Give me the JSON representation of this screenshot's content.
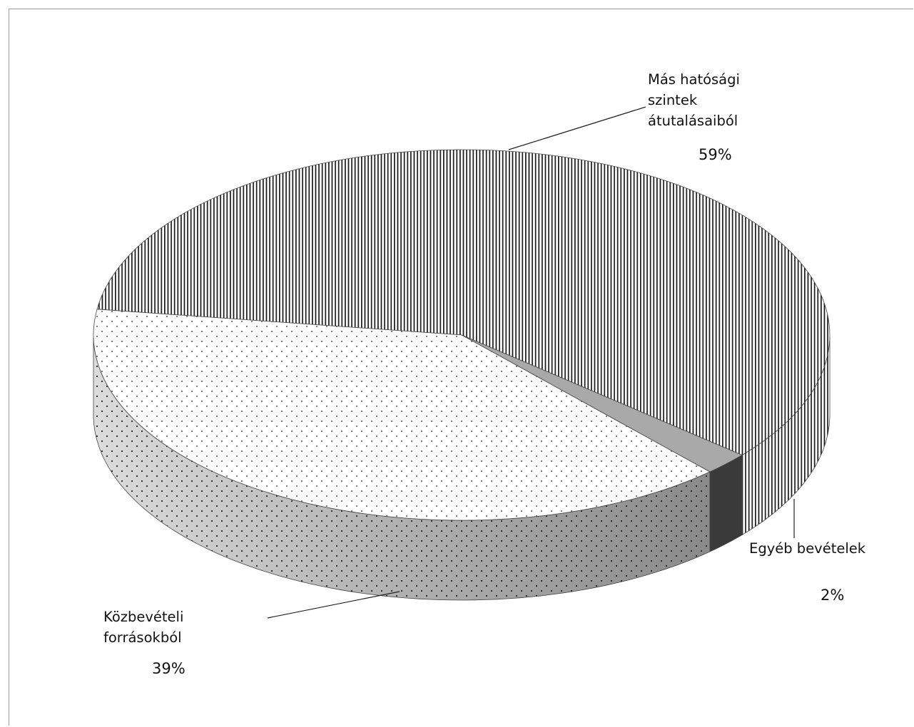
{
  "chart_data": {
    "type": "pie",
    "style": "3d",
    "title": "",
    "slices": [
      {
        "label_lines": [
          "Más hatósági",
          "szintek",
          "átutalásaiból"
        ],
        "percent_label": "59%",
        "value": 59,
        "pattern": "vertical-lines"
      },
      {
        "label_lines": [
          "Egyéb bevételek"
        ],
        "percent_label": "2%",
        "value": 2,
        "pattern": "solid-gray"
      },
      {
        "label_lines": [
          "Közbevételi",
          "forrásokból"
        ],
        "percent_label": "39%",
        "value": 39,
        "pattern": "dots"
      }
    ],
    "legend": "none"
  }
}
